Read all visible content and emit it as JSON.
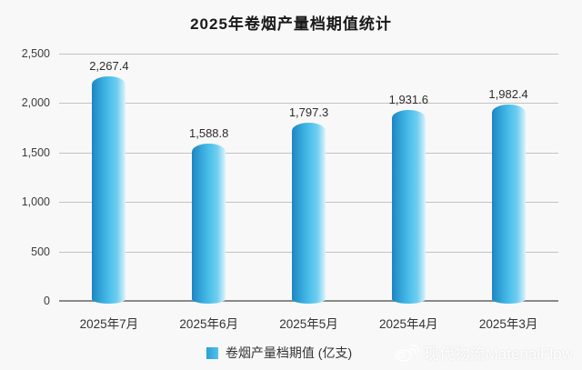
{
  "title": "2025年卷烟产量档期值统计",
  "legend": {
    "label": "卷烟产量档期值 (亿支)"
  },
  "watermark": {
    "text": "现代物流MaterialFlow"
  },
  "colors": {
    "background": "#f8f8f8",
    "bar_dark": "#1e85c2",
    "bar_mid": "#4fc2ec",
    "bar_light": "#dff4fc",
    "gridline": "#c3c3c3",
    "axis": "#8a8a8a"
  },
  "chart_data": {
    "type": "bar",
    "title": "2025年卷烟产量档期值统计",
    "categories": [
      "2025年7月",
      "2025年6月",
      "2025年5月",
      "2025年4月",
      "2025年3月"
    ],
    "values": [
      2267.4,
      1588.8,
      1797.3,
      1931.6,
      1982.4
    ],
    "value_labels": [
      "2,267.4",
      "1,588.8",
      "1,797.3",
      "1,931.6",
      "1,982.4"
    ],
    "series_name": "卷烟产量档期值 (亿支)",
    "xlabel": "",
    "ylabel": "",
    "ylim": [
      0,
      2500
    ],
    "yticks": [
      {
        "value": 0,
        "label": "0"
      },
      {
        "value": 500,
        "label": "500"
      },
      {
        "value": 1000,
        "label": "1,000"
      },
      {
        "value": 1500,
        "label": "1,500"
      },
      {
        "value": 2000,
        "label": "2,000"
      },
      {
        "value": 2500,
        "label": "2,500"
      }
    ],
    "grid": true,
    "legend_position": "bottom"
  }
}
